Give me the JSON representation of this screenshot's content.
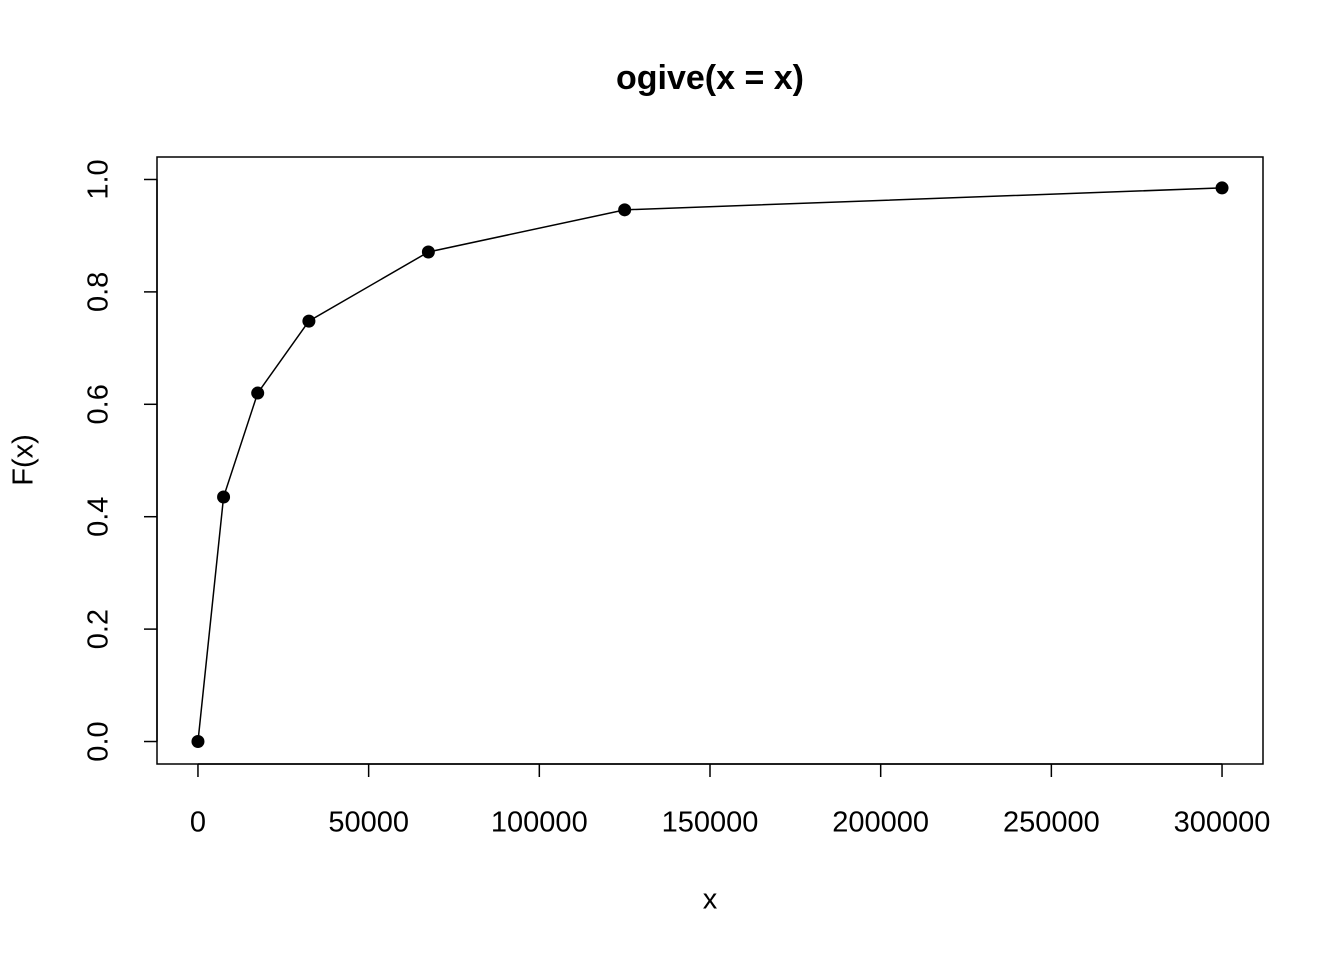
{
  "chart_data": {
    "type": "line",
    "title": "ogive(x = x)",
    "x_label": "x",
    "y_label": "F(x)",
    "x": [
      0,
      7500,
      17500,
      32500,
      67500,
      125000,
      300000
    ],
    "series": [
      {
        "color": "#000000",
        "values": [
          0,
          0.435,
          0.62,
          0.748,
          0.871,
          0.946,
          0.985
        ]
      }
    ],
    "xlim": [
      -12000,
      312000
    ],
    "xticks": [
      0,
      50000,
      100000,
      150000,
      200000,
      250000,
      300000
    ],
    "ylim": [
      -0.04,
      1.04
    ],
    "yticks": [
      {
        "value": 0,
        "label": "0.0"
      },
      0.2,
      0.4,
      0.6,
      0.8,
      {
        "value": 1,
        "label": "1.0"
      }
    ]
  }
}
